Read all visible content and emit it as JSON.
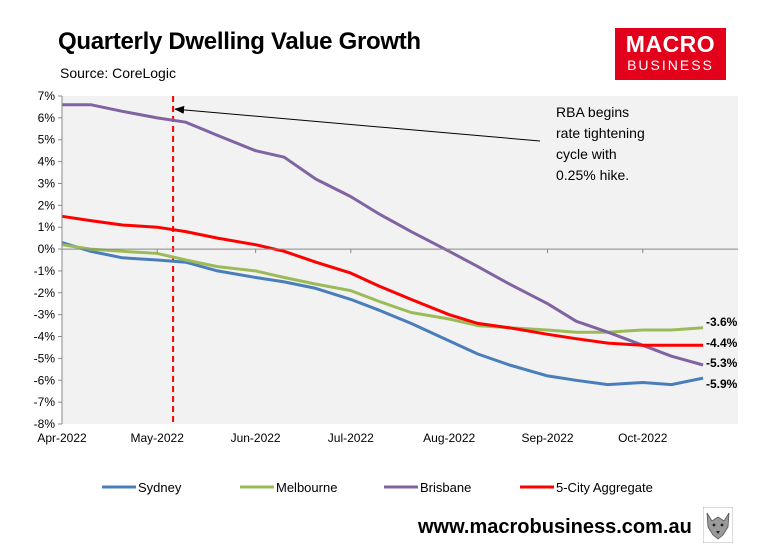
{
  "header": {
    "title": "Quarterly Dwelling Value Growth",
    "source": "Source: CoreLogic"
  },
  "logo": {
    "line1": "MACRO",
    "line2": "BUSINESS",
    "color": "#e3001b"
  },
  "footer": {
    "url": "www.macrobusiness.com.au"
  },
  "chart_data": {
    "type": "line",
    "title": "Quarterly Dwelling Value Growth",
    "xlabel": "",
    "ylabel": "",
    "ylim": [
      -8,
      7
    ],
    "yticks": [
      "7%",
      "6%",
      "5%",
      "4%",
      "3%",
      "2%",
      "1%",
      "0%",
      "-1%",
      "-2%",
      "-3%",
      "-4%",
      "-5%",
      "-6%",
      "-7%",
      "-8%"
    ],
    "xlim": [
      "2022-04-01",
      "2022-10-31"
    ],
    "xticks": [
      {
        "date": "2022-04-01",
        "label": "Apr-2022"
      },
      {
        "date": "2022-05-01",
        "label": "May-2022"
      },
      {
        "date": "2022-06-01",
        "label": "Jun-2022"
      },
      {
        "date": "2022-07-01",
        "label": "Jul-2022"
      },
      {
        "date": "2022-08-01",
        "label": "Aug-2022"
      },
      {
        "date": "2022-09-01",
        "label": "Sep-2022"
      },
      {
        "date": "2022-10-01",
        "label": "Oct-2022"
      }
    ],
    "grid": false,
    "legend": "bottom",
    "series": [
      {
        "name": "Sydney",
        "color": "#4a7ebb",
        "points": [
          [
            "2022-04-01",
            0.3
          ],
          [
            "2022-04-10",
            -0.1
          ],
          [
            "2022-04-20",
            -0.4
          ],
          [
            "2022-05-01",
            -0.5
          ],
          [
            "2022-05-10",
            -0.6
          ],
          [
            "2022-05-20",
            -1.0
          ],
          [
            "2022-06-01",
            -1.3
          ],
          [
            "2022-06-10",
            -1.5
          ],
          [
            "2022-06-20",
            -1.8
          ],
          [
            "2022-07-01",
            -2.3
          ],
          [
            "2022-07-10",
            -2.8
          ],
          [
            "2022-07-20",
            -3.4
          ],
          [
            "2022-08-01",
            -4.2
          ],
          [
            "2022-08-10",
            -4.8
          ],
          [
            "2022-08-20",
            -5.3
          ],
          [
            "2022-09-01",
            -5.8
          ],
          [
            "2022-09-10",
            -6.0
          ],
          [
            "2022-09-20",
            -6.2
          ],
          [
            "2022-10-01",
            -6.1
          ],
          [
            "2022-10-10",
            -6.2
          ],
          [
            "2022-10-20",
            -5.9
          ]
        ]
      },
      {
        "name": "Melbourne",
        "color": "#9bbb59",
        "points": [
          [
            "2022-04-01",
            0.2
          ],
          [
            "2022-04-10",
            0.0
          ],
          [
            "2022-04-20",
            -0.1
          ],
          [
            "2022-05-01",
            -0.2
          ],
          [
            "2022-05-10",
            -0.5
          ],
          [
            "2022-05-20",
            -0.8
          ],
          [
            "2022-06-01",
            -1.0
          ],
          [
            "2022-06-10",
            -1.3
          ],
          [
            "2022-06-20",
            -1.6
          ],
          [
            "2022-07-01",
            -1.9
          ],
          [
            "2022-07-10",
            -2.4
          ],
          [
            "2022-07-20",
            -2.9
          ],
          [
            "2022-08-01",
            -3.2
          ],
          [
            "2022-08-10",
            -3.5
          ],
          [
            "2022-08-20",
            -3.6
          ],
          [
            "2022-09-01",
            -3.7
          ],
          [
            "2022-09-10",
            -3.8
          ],
          [
            "2022-09-20",
            -3.8
          ],
          [
            "2022-10-01",
            -3.7
          ],
          [
            "2022-10-10",
            -3.7
          ],
          [
            "2022-10-20",
            -3.6
          ]
        ]
      },
      {
        "name": "Brisbane",
        "color": "#8064a2",
        "points": [
          [
            "2022-04-01",
            6.6
          ],
          [
            "2022-04-10",
            6.6
          ],
          [
            "2022-04-20",
            6.3
          ],
          [
            "2022-05-01",
            6.0
          ],
          [
            "2022-05-10",
            5.8
          ],
          [
            "2022-05-20",
            5.2
          ],
          [
            "2022-06-01",
            4.5
          ],
          [
            "2022-06-10",
            4.2
          ],
          [
            "2022-06-20",
            3.2
          ],
          [
            "2022-07-01",
            2.4
          ],
          [
            "2022-07-10",
            1.6
          ],
          [
            "2022-07-20",
            0.8
          ],
          [
            "2022-08-01",
            -0.1
          ],
          [
            "2022-08-10",
            -0.8
          ],
          [
            "2022-08-20",
            -1.6
          ],
          [
            "2022-09-01",
            -2.5
          ],
          [
            "2022-09-10",
            -3.3
          ],
          [
            "2022-09-20",
            -3.8
          ],
          [
            "2022-10-01",
            -4.4
          ],
          [
            "2022-10-10",
            -4.9
          ],
          [
            "2022-10-20",
            -5.3
          ]
        ]
      },
      {
        "name": "5-City Aggregate",
        "color": "#ff0000",
        "points": [
          [
            "2022-04-01",
            1.5
          ],
          [
            "2022-04-10",
            1.3
          ],
          [
            "2022-04-20",
            1.1
          ],
          [
            "2022-05-01",
            1.0
          ],
          [
            "2022-05-10",
            0.8
          ],
          [
            "2022-05-20",
            0.5
          ],
          [
            "2022-06-01",
            0.2
          ],
          [
            "2022-06-10",
            -0.1
          ],
          [
            "2022-06-20",
            -0.6
          ],
          [
            "2022-07-01",
            -1.1
          ],
          [
            "2022-07-10",
            -1.7
          ],
          [
            "2022-07-20",
            -2.3
          ],
          [
            "2022-08-01",
            -3.0
          ],
          [
            "2022-08-10",
            -3.4
          ],
          [
            "2022-08-20",
            -3.6
          ],
          [
            "2022-09-01",
            -3.9
          ],
          [
            "2022-09-10",
            -4.1
          ],
          [
            "2022-09-20",
            -4.3
          ],
          [
            "2022-10-01",
            -4.4
          ],
          [
            "2022-10-10",
            -4.4
          ],
          [
            "2022-10-20",
            -4.4
          ]
        ]
      }
    ],
    "end_labels": [
      {
        "text": "-3.6%",
        "value": -3.6
      },
      {
        "text": "-4.4%",
        "value": -4.4
      },
      {
        "text": "-5.3%",
        "value": -5.3
      },
      {
        "text": "-5.9%",
        "value": -5.9
      }
    ],
    "marker": {
      "date": "2022-05-06",
      "color": "#ff0000",
      "style": "dashed"
    },
    "annotation": {
      "lines": [
        "RBA begins",
        "rate tightening",
        "cycle with",
        "0.25% hike."
      ],
      "arrow_to": {
        "date": "2022-05-06",
        "value": 6.4
      }
    }
  }
}
